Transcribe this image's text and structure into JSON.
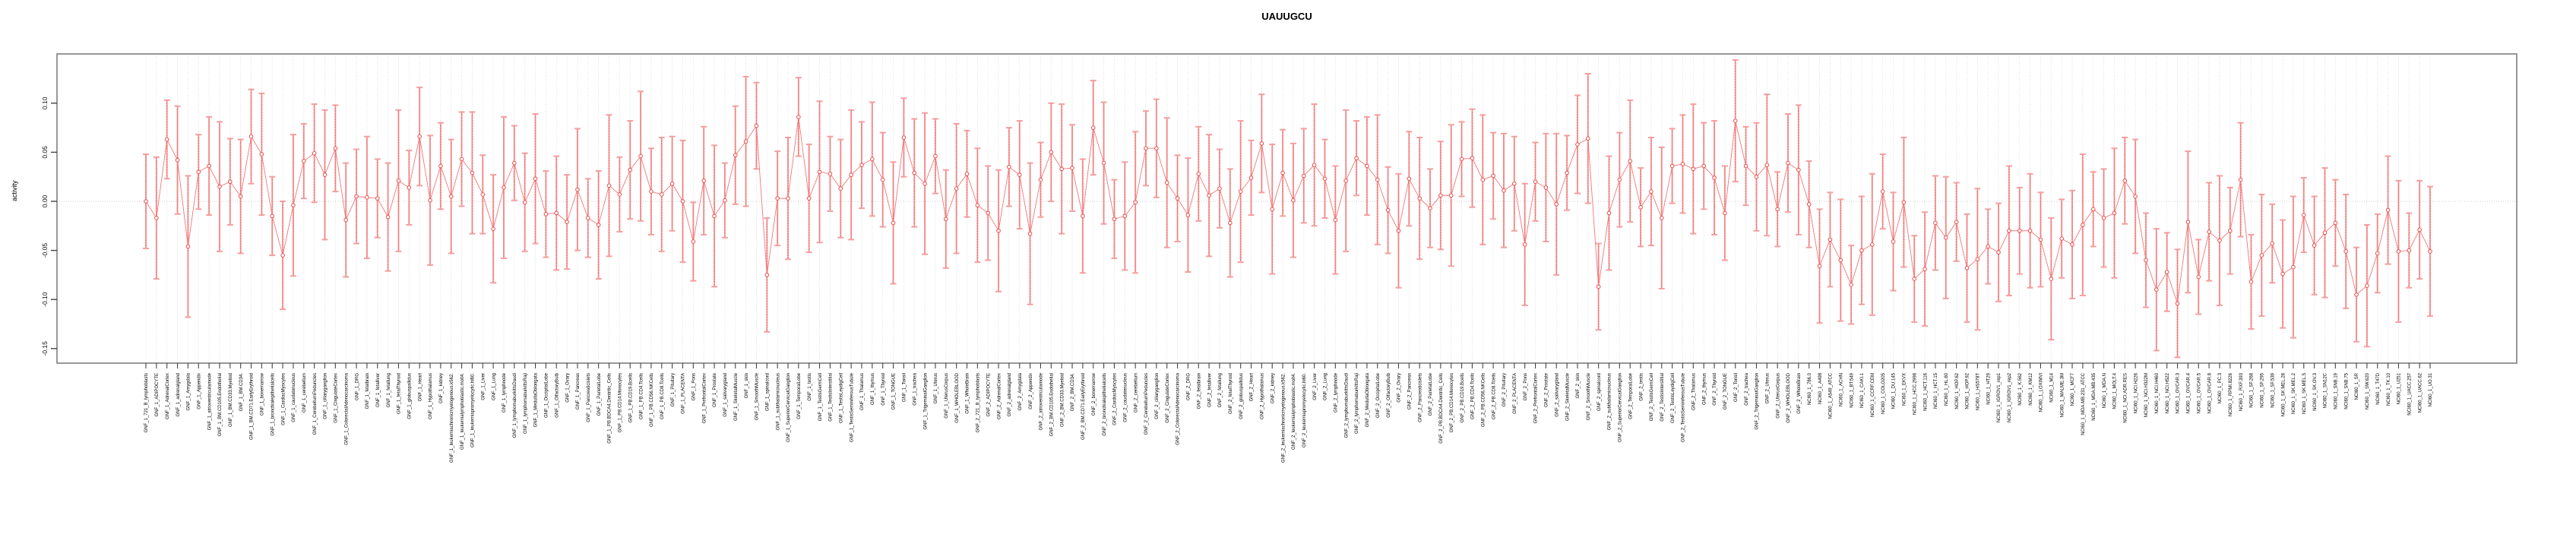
{
  "chart_data": {
    "type": "line",
    "title": "UAUUGCU",
    "ylabel": "activity",
    "xlabel": "",
    "ylim": [
      -0.165,
      0.15
    ],
    "yticks": [
      0.1,
      0.05,
      0.0,
      -0.05,
      -0.1,
      -0.15
    ],
    "ytick_labels": [
      "0.10",
      "0.05",
      "0.00",
      "-0.05",
      "-0.10",
      "-0.15"
    ],
    "grid": "vertical dotted gridline at every category; dotted horizontal line at 0.00",
    "legend_position": "none",
    "style": "open red circles with salmon error bars connected by salmon line",
    "colors": {
      "point_stroke": "#ea4b4b",
      "error_bar": "#f59f9f",
      "error_bar_core": "#ee5b5b",
      "series_line": "#f07878",
      "gridline": "#d9d9d9",
      "zero_line": "#cfcfcf",
      "box_border": "#7f7f7f",
      "tick": "#444444",
      "text": "#000000"
    },
    "categories": [
      "GNF_1_721_B_lymphoblasts",
      "GNF_1_ADIPOCYTE",
      "GNF_1_AdrenalCortex",
      "GNF_1_adrenalgland",
      "GNF_1_Amygdala",
      "GNF_1_Appendix",
      "GNF_1_atrioventricularnode",
      "GNF_1_BM.CD105.Endothelial",
      "GNF_1_BM.CD33.Myeloid",
      "GNF_1_BM.CD34.",
      "GNF_1_BM.CD71.EarlyErythroid",
      "GNF_1_bonemarrow",
      "GNF_1_bronchialepithelialcells",
      "GNF_1_CardiacMyocytes",
      "GNF_1_caudatenucleus",
      "GNF_1_cerebellum",
      "GNF_1_CerebellumPeduncles",
      "GNF_1_ciliaryganglion",
      "GNF_1_CingulateCortex",
      "GNF_1_ColorectalAdenocarcinoma",
      "GNF_1_DRG",
      "GNF_1_fetalbrain",
      "GNF_1_fetalliver",
      "GNF_1_fetallung",
      "GNF_1_fetalThyroid",
      "GNF_1_globuspallidus",
      "GNF_1_Heart",
      "GNF_1_Hypothalamus",
      "GNF_1_kidney",
      "GNF_1_leukemiachronicmyelogenous.k562.",
      "GNF_1_leukemialymphoblastic.molt4.",
      "GNF_1_leukemiapromyelocytic.hl60.",
      "GNF_1_Liver",
      "GNF_1_Lung",
      "GNF_1_lymphnode",
      "GNF_1_lymphomaburkittsDaudi",
      "GNF_1_lymphomaburkittsRaji",
      "GNF_1_MedullaOblongata",
      "GNF_1_OccipitalLobe",
      "GNF_1_OlfactoryBulb",
      "GNF_1_Ovary",
      "GNF_1_Pancreas",
      "GNF_1_Pancreaticislets",
      "GNF_1_ParietalLobe",
      "GNF_1_PB.BDCA4.Dentritic_Cells",
      "GNF_1_PB.CD14.Monocytes",
      "GNF_1_PB.CD19.Bcells",
      "GNF_1_PB.CD4.Tcells",
      "GNF_1_PB.CD56.NKCells",
      "GNF_1_PB.CD8.Tcells",
      "GNF_1_Pituitary",
      "GNF_1_PLACENTA",
      "GNF_1_Pons",
      "GNF_1_PrefrontalCortex",
      "GNF_1_Prostate",
      "GNF_1_salivarygland",
      "GNF_1_SkeletalMuscle",
      "GNF_1_skin",
      "GNF_1_SmoothMuscle",
      "GNF_1_spinalcord",
      "GNF_1_subthalamicnucleus",
      "GNF_1_SuperiorCervicalGanglion",
      "GNF_1_TemporalLobe",
      "GNF_1_testis",
      "GNF_1_TestisGermCell",
      "GNF_1_TestisInterstitial",
      "GNF_1_TestisLeydigCell",
      "GNF_1_TestisSeminiferousTubule",
      "GNF_1_Thalamus",
      "GNF_1_thymus",
      "GNF_1_Thyroid",
      "GNF_1_TONGUE",
      "GNF_1_Tonsil",
      "GNF_1_trachea",
      "GNF_1_TrigeminalGanglion",
      "GNF_1_Uterus",
      "GNF_1_UterusCorpus",
      "GNF_1_WHOLEBLOOD",
      "GNF_1_WholeBrain",
      "GNF_2_721_B_lymphoblasts",
      "GNF_2_ADIPOCYTE",
      "GNF_2_AdrenalCortex",
      "GNF_2_adrenalgland",
      "GNF_2_Amygdala",
      "GNF_2_Appendix",
      "GNF_2_atrioventricularnode",
      "GNF_2_BM.CD105.Endothelial",
      "GNF_2_BM.CD33.Myeloid",
      "GNF_2_BM.CD34.",
      "GNF_2_BM.CD71.EarlyErythroid",
      "GNF_2_bonemarrow",
      "GNF_2_bronchialepithelialcells",
      "GNF_2_CardiacMyocytes",
      "GNF_2_caudatenucleus",
      "GNF_2_cerebellum",
      "GNF_2_CerebellumPeduncles",
      "GNF_2_ciliaryganglion",
      "GNF_2_CingulateCortex",
      "GNF_2_ColorectalAdenocarcinoma",
      "GNF_2_DRG",
      "GNF_2_fetalbrain",
      "GNF_2_fetalliver",
      "GNF_2_fetallung",
      "GNF_2_fetalThyroid",
      "GNF_2_globuspallidus",
      "GNF_2_Heart",
      "GNF_2_Hypothalamus",
      "GNF_2_kidney",
      "GNF_2_leukemiachronicmyelogenous.k562.",
      "GNF_2_leukemialymphoblastic.molt4.",
      "GNF_2_leukemiapromyelocytic.hl60.",
      "GNF_2_Liver",
      "GNF_2_Lung",
      "GNF_2_lymphnode",
      "GNF_2_lymphomaburkittsDaudi",
      "GNF_2_lymphomaburkittsRaji",
      "GNF_2_MedullaOblongata",
      "GNF_2_OccipitalLobe",
      "GNF_2_OlfactoryBulb",
      "GNF_2_Ovary",
      "GNF_2_Pancreas",
      "GNF_2_Pancreaticislets",
      "GNF_2_ParietalLobe",
      "GNF_2_PB.BDCA4.Dentritic_Cells",
      "GNF_2_PB.CD14.Monocytes",
      "GNF_2_PB.CD19.Bcells",
      "GNF_2_PB.CD4.Tcells",
      "GNF_2_PB.CD56.NKCells",
      "GNF_2_PB.CD8.Tcells",
      "GNF_2_Pituitary",
      "GNF_2_PLACENTA",
      "GNF_2_Pons",
      "GNF_2_PrefrontalCortex",
      "GNF_2_Prostate",
      "GNF_2_salivarygland",
      "GNF_2_SkeletalMuscle",
      "GNF_2_skin",
      "GNF_2_SmoothMuscle",
      "GNF_2_spinalcord",
      "GNF_2_subthalamicnucleus",
      "GNF_2_SuperiorCervicalGanglion",
      "GNF_2_TemporalLobe",
      "GNF_2_testis",
      "GNF_2_TestisGermCell",
      "GNF_2_TestisInterstitial",
      "GNF_2_TestisLeydigCell",
      "GNF_2_TestisSeminiferousTubule",
      "GNF_2_Thalamus",
      "GNF_2_thymus",
      "GNF_2_Thyroid",
      "GNF_2_TONGUE",
      "GNF_2_Tonsil",
      "GNF_2_trachea",
      "GNF_2_TrigeminalGanglion",
      "GNF_2_Uterus",
      "GNF_2_UterusCorpus",
      "GNF_2_WHOLEBLOOD",
      "GNF_2_WholeBrain",
      "NCI60_1_786.0",
      "NCI60_1_A498",
      "NCI60_1_A549_ATCC",
      "NCI60_1_ACHN",
      "NCI60_1_BT.549",
      "NCI60_1_CAKI.1",
      "NCI60_1_CCRF.CEM",
      "NCI60_1_COLO205",
      "NCI60_1_DU.145",
      "NCI60_1_EKVX",
      "NCI60_1_HCC.2998",
      "NCI60_1_HCT.116",
      "NCI60_1_HCT.15",
      "NCI60_1_HL.60",
      "NCI60_1_HOP.62",
      "NCI60_1_HOP.92",
      "NCI60_1_HS578T",
      "NCI60_1_HT29",
      "NCI60_1_IGROV1_rep1",
      "NCI60_1_IGROV1_rep2",
      "NCI60_1_K.562",
      "NCI60_1_KM12",
      "NCI60_1_LOXIMVI",
      "NCI60_1_M14",
      "NCI60_1_MALME.3M",
      "NCI60_1_MCF7",
      "NCI60_1_MDA.MB.231_ATCC",
      "NCI60_1_MDA.MB.435",
      "NCI60_1_MDA.N",
      "NCI60_1_MOLT.4",
      "NCI60_1_NCI.ADR.RES",
      "NCI60_1_NCI.H226",
      "NCI60_1_NCI.H322M",
      "NCI60_1_NCI.H460",
      "NCI60_1_NCI.H522",
      "NCI60_1_OVCAR.3",
      "NCI60_1_OVCAR.4",
      "NCI60_1_OVCAR.5",
      "NCI60_1_OVCAR.8",
      "NCI60_1_PC.3",
      "NCI60_1_RPMI.8226",
      "NCI60_1_RXF.393",
      "NCI60_1_SF.268",
      "NCI60_1_SF.295",
      "NCI60_1_SF.539",
      "NCI60_1_SK.MEL.28",
      "NCI60_1_SK.MEL.2",
      "NCI60_1_SK.MEL.5",
      "NCI60_1_SK.OV.3",
      "NCI60_1_SN12C",
      "NCI60_1_SNB.19",
      "NCI60_1_SNB.75",
      "NCI60_1_SR",
      "NCI60_1_SW.620",
      "NCI60_1_T47D",
      "NCI60_1_TK.10",
      "NCI60_1_U251",
      "NCI60_1_UACC.257",
      "NCI60_1_UACC.62",
      "NCI60_1_UO.31"
    ],
    "values": [
      0.0,
      -0.017,
      0.063,
      0.042,
      -0.046,
      0.03,
      0.036,
      0.015,
      0.02,
      0.005,
      0.066,
      0.048,
      -0.015,
      -0.055,
      -0.004,
      0.041,
      0.049,
      0.027,
      0.054,
      -0.019,
      0.005,
      0.004,
      0.003,
      -0.016,
      0.021,
      0.014,
      0.066,
      0.001,
      0.036,
      0.005,
      0.043,
      0.029,
      0.007,
      -0.028,
      0.014,
      0.039,
      -0.001,
      0.023,
      -0.013,
      -0.012,
      -0.021,
      0.012,
      -0.017,
      -0.024,
      0.016,
      0.007,
      0.032,
      0.046,
      0.01,
      0.007,
      0.018,
      0.0,
      -0.041,
      0.021,
      -0.015,
      0.001,
      0.047,
      0.061,
      0.077,
      -0.075,
      0.003,
      0.003,
      0.086,
      0.003,
      0.03,
      0.028,
      0.013,
      0.027,
      0.037,
      0.043,
      0.022,
      -0.022,
      0.065,
      0.029,
      0.018,
      0.046,
      -0.018,
      0.013,
      0.028,
      -0.004,
      -0.012,
      -0.03,
      0.035,
      0.027,
      -0.033,
      0.022,
      0.05,
      0.033,
      0.034,
      -0.015,
      0.075,
      0.039,
      -0.018,
      -0.015,
      -0.001,
      0.054,
      0.054,
      0.019,
      0.003,
      -0.014,
      0.028,
      0.006,
      0.013,
      -0.022,
      0.01,
      0.024,
      0.059,
      -0.008,
      0.029,
      0.001,
      0.026,
      0.037,
      0.023,
      -0.019,
      0.021,
      0.044,
      0.036,
      0.022,
      -0.009,
      -0.03,
      0.023,
      0.003,
      -0.007,
      0.006,
      0.006,
      0.043,
      0.044,
      0.022,
      0.026,
      0.011,
      0.018,
      -0.044,
      0.02,
      0.014,
      -0.003,
      0.029,
      0.058,
      0.064,
      -0.087,
      -0.012,
      0.022,
      0.041,
      -0.006,
      0.01,
      -0.017,
      0.036,
      0.038,
      0.033,
      0.036,
      0.024,
      -0.012,
      0.082,
      0.036,
      0.025,
      0.037,
      -0.008,
      0.039,
      0.032,
      -0.003,
      -0.066,
      -0.039,
      -0.06,
      -0.085,
      -0.05,
      -0.044,
      0.01,
      -0.041,
      -0.001,
      -0.079,
      -0.069,
      -0.022,
      -0.037,
      -0.021,
      -0.068,
      -0.059,
      -0.046,
      -0.052,
      -0.03,
      -0.03,
      -0.03,
      -0.039,
      -0.079,
      -0.038,
      -0.044,
      -0.024,
      -0.008,
      -0.017,
      -0.012,
      0.021,
      0.005,
      -0.06,
      -0.09,
      -0.072,
      -0.104,
      -0.021,
      -0.077,
      -0.031,
      -0.04,
      -0.03,
      0.022,
      -0.082,
      -0.055,
      -0.043,
      -0.074,
      -0.067,
      -0.014,
      -0.045,
      -0.032,
      -0.022,
      -0.051,
      -0.095,
      -0.086,
      -0.053,
      -0.009,
      -0.051,
      -0.05,
      -0.029,
      -0.051
    ],
    "errors": [
      0.048,
      0.062,
      0.04,
      0.055,
      0.072,
      0.038,
      0.05,
      0.066,
      0.044,
      0.058,
      0.048,
      0.062,
      0.04,
      0.055,
      0.072,
      0.038,
      0.05,
      0.066,
      0.044,
      0.058,
      0.048,
      0.062,
      0.04,
      0.055,
      0.072,
      0.038,
      0.05,
      0.066,
      0.044,
      0.058,
      0.048,
      0.062,
      0.04,
      0.055,
      0.072,
      0.038,
      0.05,
      0.066,
      0.044,
      0.058,
      0.048,
      0.062,
      0.04,
      0.055,
      0.072,
      0.038,
      0.05,
      0.066,
      0.044,
      0.058,
      0.048,
      0.062,
      0.04,
      0.055,
      0.072,
      0.038,
      0.05,
      0.066,
      0.044,
      0.058,
      0.048,
      0.062,
      0.04,
      0.055,
      0.072,
      0.038,
      0.05,
      0.066,
      0.044,
      0.058,
      0.048,
      0.062,
      0.04,
      0.055,
      0.072,
      0.038,
      0.05,
      0.066,
      0.044,
      0.058,
      0.048,
      0.062,
      0.04,
      0.055,
      0.072,
      0.038,
      0.05,
      0.066,
      0.044,
      0.058,
      0.048,
      0.062,
      0.04,
      0.055,
      0.072,
      0.038,
      0.05,
      0.066,
      0.044,
      0.058,
      0.048,
      0.062,
      0.04,
      0.055,
      0.072,
      0.038,
      0.05,
      0.066,
      0.044,
      0.058,
      0.048,
      0.062,
      0.04,
      0.055,
      0.072,
      0.038,
      0.05,
      0.066,
      0.044,
      0.058,
      0.048,
      0.062,
      0.04,
      0.055,
      0.072,
      0.038,
      0.05,
      0.066,
      0.044,
      0.058,
      0.048,
      0.062,
      0.04,
      0.055,
      0.072,
      0.038,
      0.05,
      0.066,
      0.044,
      0.058,
      0.048,
      0.062,
      0.04,
      0.055,
      0.072,
      0.038,
      0.05,
      0.066,
      0.044,
      0.058,
      0.048,
      0.062,
      0.04,
      0.055,
      0.072,
      0.038,
      0.05,
      0.066,
      0.044,
      0.058,
      0.048,
      0.062,
      0.04,
      0.055,
      0.072,
      0.038,
      0.05,
      0.066,
      0.044,
      0.058,
      0.048,
      0.062,
      0.04,
      0.055,
      0.072,
      0.038,
      0.05,
      0.066,
      0.044,
      0.058,
      0.048,
      0.062,
      0.04,
      0.055,
      0.072,
      0.038,
      0.05,
      0.066,
      0.044,
      0.058,
      0.048,
      0.062,
      0.04,
      0.055,
      0.072,
      0.038,
      0.05,
      0.066,
      0.044,
      0.058,
      0.048,
      0.062,
      0.04,
      0.055,
      0.072,
      0.038,
      0.05,
      0.066,
      0.044,
      0.058,
      0.048,
      0.062,
      0.04,
      0.055,
      0.072,
      0.038,
      0.05,
      0.066
    ]
  }
}
